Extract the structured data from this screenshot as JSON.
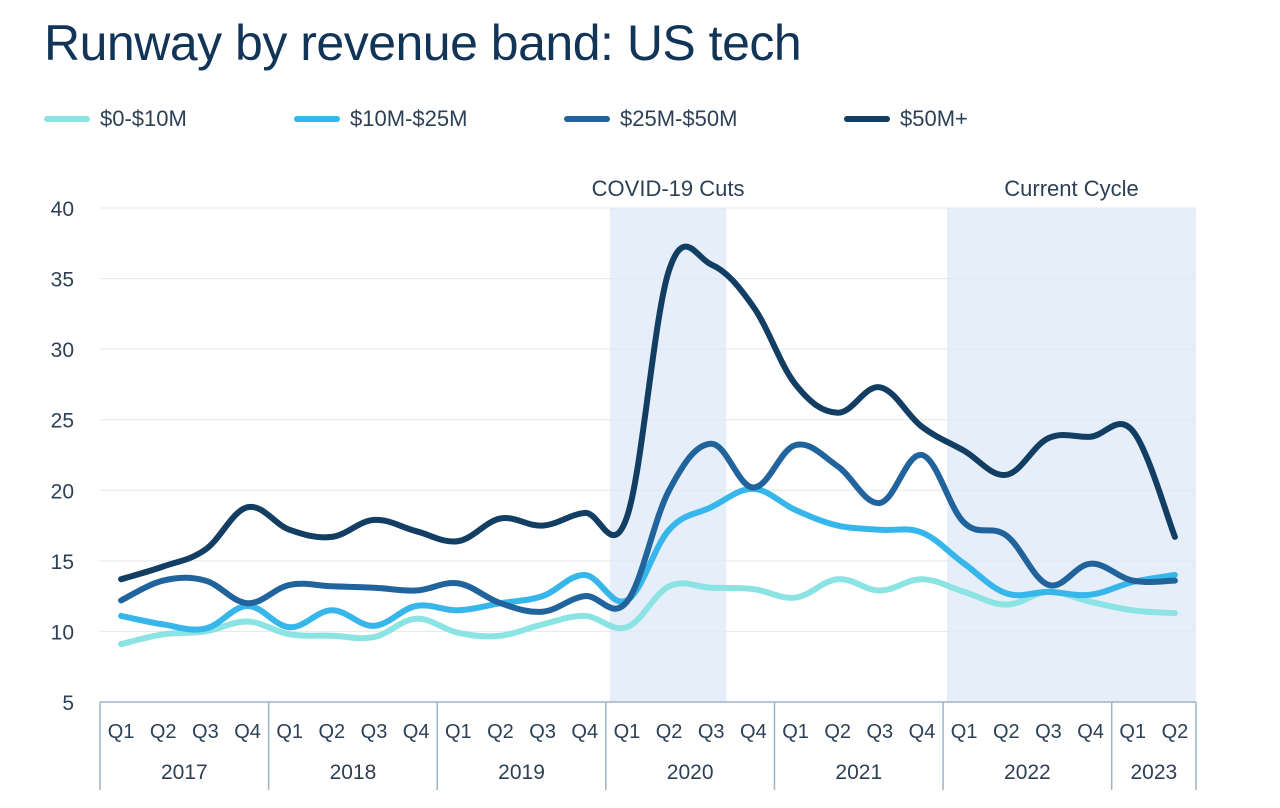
{
  "chart_data": {
    "type": "line",
    "title": "Runway by revenue band: US tech",
    "xlabel": "",
    "ylabel": "",
    "ylim": [
      5,
      40
    ],
    "yticks": [
      5,
      10,
      15,
      20,
      25,
      30,
      35,
      40
    ],
    "grid": true,
    "legend_position": "top",
    "quarters": [
      "Q1",
      "Q2",
      "Q3",
      "Q4",
      "Q1",
      "Q2",
      "Q3",
      "Q4",
      "Q1",
      "Q2",
      "Q3",
      "Q4",
      "Q1",
      "Q2",
      "Q3",
      "Q4",
      "Q1",
      "Q2",
      "Q3",
      "Q4",
      "Q1",
      "Q2",
      "Q3",
      "Q4",
      "Q1",
      "Q2"
    ],
    "years": [
      {
        "label": "2017",
        "quarters": 4
      },
      {
        "label": "2018",
        "quarters": 4
      },
      {
        "label": "2019",
        "quarters": 4
      },
      {
        "label": "2020",
        "quarters": 4
      },
      {
        "label": "2021",
        "quarters": 4
      },
      {
        "label": "2022",
        "quarters": 4
      },
      {
        "label": "2023",
        "quarters": 2
      }
    ],
    "annotations": [
      {
        "label": "COVID-19 Cuts",
        "start_index": 12,
        "end_index": 14
      },
      {
        "label": "Current Cycle",
        "start_index": 20,
        "end_index": 25
      }
    ],
    "series": [
      {
        "name": "$0-$10M",
        "color": "#8ce3e3",
        "values": [
          9.1,
          9.8,
          10.0,
          10.7,
          9.8,
          9.7,
          9.6,
          10.9,
          9.9,
          9.7,
          10.5,
          11.1,
          10.3,
          13.2,
          13.1,
          13.0,
          12.4,
          13.7,
          12.9,
          13.7,
          12.8,
          11.9,
          12.8,
          12.1,
          11.5,
          11.3
        ]
      },
      {
        "name": "$10M-$25M",
        "color": "#36b6ea",
        "values": [
          11.1,
          10.5,
          10.2,
          11.8,
          10.3,
          11.5,
          10.4,
          11.8,
          11.5,
          12.0,
          12.5,
          14.0,
          12.2,
          17.2,
          18.8,
          20.1,
          18.6,
          17.5,
          17.2,
          17.0,
          14.8,
          12.7,
          12.8,
          12.6,
          13.5,
          14.0
        ]
      },
      {
        "name": "$25M-$50M",
        "color": "#21639c",
        "values": [
          12.2,
          13.6,
          13.6,
          12.0,
          13.3,
          13.2,
          13.1,
          12.9,
          13.4,
          12.0,
          11.4,
          12.5,
          12.1,
          20.0,
          23.3,
          20.2,
          23.2,
          21.7,
          19.1,
          22.5,
          17.7,
          16.8,
          13.3,
          14.8,
          13.6,
          13.6
        ]
      },
      {
        "name": "$50M+",
        "color": "#123e63",
        "values": [
          13.7,
          14.6,
          15.8,
          18.8,
          17.2,
          16.7,
          17.9,
          17.1,
          16.4,
          18.0,
          17.5,
          18.4,
          18.1,
          35.6,
          36.0,
          33.0,
          27.5,
          25.5,
          27.3,
          24.5,
          22.8,
          21.1,
          23.7,
          23.8,
          24.2,
          16.7
        ]
      }
    ]
  }
}
